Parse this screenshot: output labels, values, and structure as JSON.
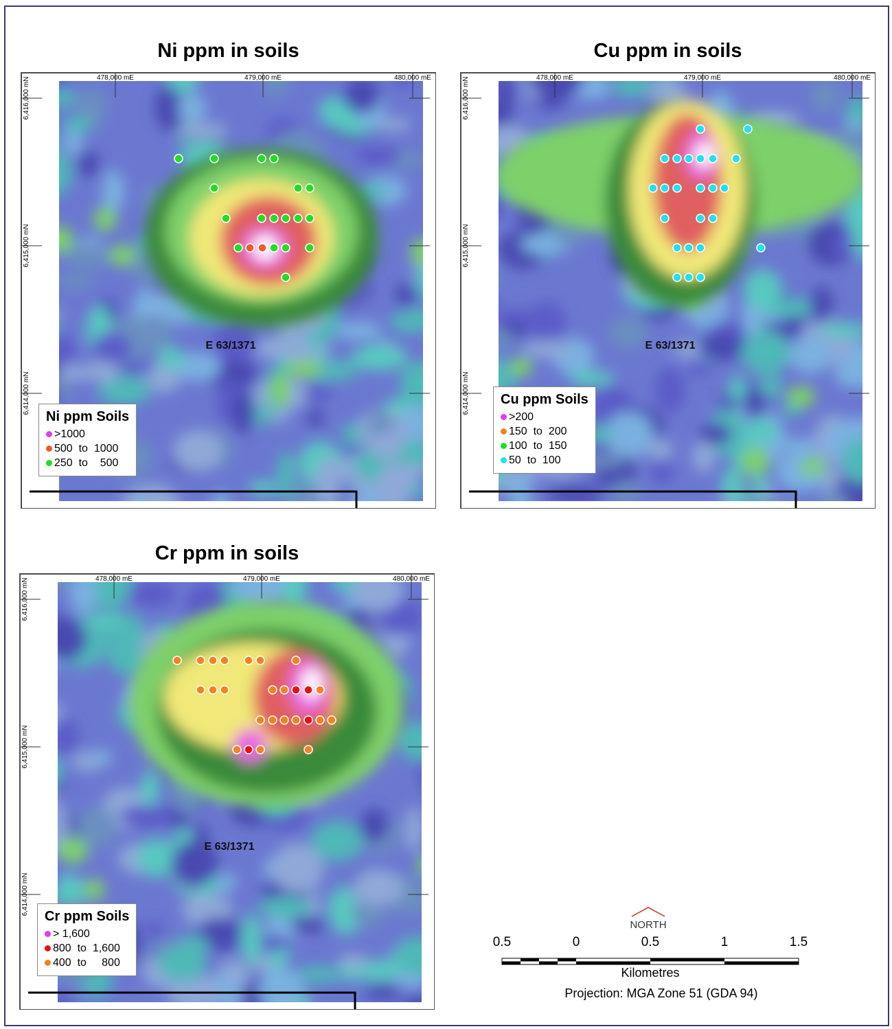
{
  "maps": [
    {
      "title": "Ni ppm in soils",
      "easting_labels": [
        "478,000 mE",
        "479,000 mE",
        "480,000 mE"
      ],
      "northing_labels": [
        "6,416,000 mN",
        "6,415,000 mN",
        "6,414,000 mN"
      ],
      "tenement": "E 63/1371",
      "legend": {
        "title": "Ni ppm Soils",
        "items": [
          {
            "label": ">1000",
            "color": "#e040e8"
          },
          {
            "label": "500  to  1000",
            "color": "#f05a28"
          },
          {
            "label": "250  to    500",
            "color": "#22dd22"
          }
        ]
      }
    },
    {
      "title": "Cu ppm in soils",
      "easting_labels": [
        "478,000 mE",
        "479,000 mE",
        "480,000 mE"
      ],
      "northing_labels": [
        "6,416,000 mN",
        "6,415,000 mN",
        "6,414,000 mN"
      ],
      "tenement": "E 63/1371",
      "legend": {
        "title": "Cu ppm Soils",
        "items": [
          {
            "label": ">200",
            "color": "#e040e8"
          },
          {
            "label": "150  to  200",
            "color": "#f58220"
          },
          {
            "label": "100  to  150",
            "color": "#22dd22"
          },
          {
            "label": "50  to  100",
            "color": "#22e0f0"
          }
        ]
      }
    },
    {
      "title": "Cr ppm in soils",
      "easting_labels": [
        "478,000 mE",
        "479,000 mE",
        "480,000 mE"
      ],
      "northing_labels": [
        "6,416,000 mN",
        "6,415,000 mN",
        "6,414,000 mN"
      ],
      "tenement": "E 63/1371",
      "legend": {
        "title": "Cr ppm Soils",
        "items": [
          {
            "label": "> 1,600",
            "color": "#e040e8"
          },
          {
            "label": "800  to  1,600",
            "color": "#e81010"
          },
          {
            "label": "400  to     800",
            "color": "#f58220"
          }
        ]
      }
    }
  ],
  "north": "NORTH",
  "scale": {
    "labels": [
      "0.5",
      "0",
      "0.5",
      "1",
      "1.5"
    ],
    "unit": "Kilometres"
  },
  "projection": "Projection: MGA Zone 51 (GDA 94)"
}
